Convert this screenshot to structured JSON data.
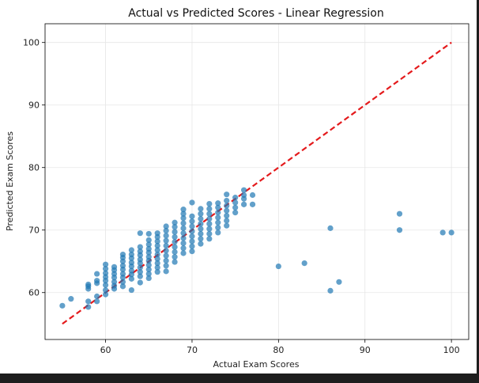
{
  "chart_data": {
    "type": "scatter",
    "title": "Actual vs Predicted Scores - Linear Regression",
    "xlabel": "Actual Exam Scores",
    "ylabel": "Predicted Exam Scores",
    "xlim": [
      53,
      102
    ],
    "ylim": [
      52.5,
      103
    ],
    "xticks": [
      60,
      70,
      80,
      90,
      100
    ],
    "yticks": [
      60,
      70,
      80,
      90,
      100
    ],
    "grid": true,
    "point_color": "#1f77b4",
    "line_color": "#e41a1c",
    "reference_line": {
      "style": "dashed",
      "x": [
        55,
        100
      ],
      "y": [
        55,
        100
      ]
    },
    "series": [
      {
        "points": [
          [
            55,
            57.9
          ],
          [
            56,
            59.0
          ],
          [
            58,
            57.7
          ],
          [
            58,
            58.6
          ],
          [
            58,
            60.6
          ],
          [
            58,
            61.0
          ],
          [
            58,
            61.3
          ],
          [
            59,
            58.6
          ],
          [
            59,
            59.4
          ],
          [
            59,
            61.5
          ],
          [
            59,
            61.9
          ],
          [
            59,
            63.0
          ],
          [
            60,
            59.7
          ],
          [
            60,
            60.4
          ],
          [
            60,
            61.2
          ],
          [
            60,
            61.9
          ],
          [
            60,
            62.5
          ],
          [
            60,
            63.1
          ],
          [
            60,
            63.8
          ],
          [
            60,
            64.5
          ],
          [
            61,
            60.6
          ],
          [
            61,
            61.1
          ],
          [
            61,
            61.7
          ],
          [
            61,
            62.4
          ],
          [
            61,
            63.0
          ],
          [
            61,
            63.6
          ],
          [
            61,
            64.1
          ],
          [
            62,
            61.0
          ],
          [
            62,
            61.7
          ],
          [
            62,
            62.4
          ],
          [
            62,
            63.0
          ],
          [
            62,
            63.7
          ],
          [
            62,
            64.3
          ],
          [
            62,
            65.0
          ],
          [
            62,
            65.6
          ],
          [
            62,
            66.1
          ],
          [
            63,
            60.4
          ],
          [
            63,
            62.2
          ],
          [
            63,
            62.9
          ],
          [
            63,
            63.5
          ],
          [
            63,
            64.2
          ],
          [
            63,
            64.8
          ],
          [
            63,
            65.5
          ],
          [
            63,
            66.1
          ],
          [
            63,
            66.8
          ],
          [
            64,
            61.6
          ],
          [
            64,
            62.6
          ],
          [
            64,
            63.3
          ],
          [
            64,
            64.0
          ],
          [
            64,
            64.7
          ],
          [
            64,
            65.3
          ],
          [
            64,
            66.0
          ],
          [
            64,
            66.6
          ],
          [
            64,
            67.3
          ],
          [
            64,
            69.5
          ],
          [
            65,
            62.3
          ],
          [
            65,
            63.0
          ],
          [
            65,
            63.7
          ],
          [
            65,
            64.4
          ],
          [
            65,
            65.1
          ],
          [
            65,
            65.7
          ],
          [
            65,
            66.4
          ],
          [
            65,
            67.0
          ],
          [
            65,
            67.7
          ],
          [
            65,
            68.4
          ],
          [
            65,
            69.4
          ],
          [
            66,
            63.3
          ],
          [
            66,
            64.0
          ],
          [
            66,
            64.7
          ],
          [
            66,
            65.4
          ],
          [
            66,
            66.1
          ],
          [
            66,
            66.8
          ],
          [
            66,
            67.5
          ],
          [
            66,
            68.2
          ],
          [
            66,
            68.9
          ],
          [
            66,
            69.5
          ],
          [
            67,
            63.4
          ],
          [
            67,
            64.3
          ],
          [
            67,
            65.1
          ],
          [
            67,
            65.9
          ],
          [
            67,
            66.7
          ],
          [
            67,
            67.5
          ],
          [
            67,
            68.3
          ],
          [
            67,
            69.1
          ],
          [
            67,
            69.9
          ],
          [
            67,
            70.6
          ],
          [
            68,
            64.9
          ],
          [
            68,
            65.7
          ],
          [
            68,
            66.5
          ],
          [
            68,
            67.3
          ],
          [
            68,
            68.1
          ],
          [
            68,
            68.9
          ],
          [
            68,
            69.7
          ],
          [
            68,
            70.5
          ],
          [
            68,
            71.2
          ],
          [
            69,
            66.3
          ],
          [
            69,
            67.1
          ],
          [
            69,
            67.9
          ],
          [
            69,
            68.7
          ],
          [
            69,
            69.5
          ],
          [
            69,
            70.3
          ],
          [
            69,
            71.1
          ],
          [
            69,
            71.9
          ],
          [
            69,
            72.6
          ],
          [
            69,
            73.3
          ],
          [
            70,
            66.6
          ],
          [
            70,
            67.4
          ],
          [
            70,
            68.2
          ],
          [
            70,
            69.0
          ],
          [
            70,
            69.8
          ],
          [
            70,
            70.6
          ],
          [
            70,
            71.4
          ],
          [
            70,
            72.2
          ],
          [
            70,
            74.4
          ],
          [
            71,
            67.8
          ],
          [
            71,
            68.6
          ],
          [
            71,
            69.4
          ],
          [
            71,
            70.2
          ],
          [
            71,
            71.0
          ],
          [
            71,
            71.8
          ],
          [
            71,
            72.6
          ],
          [
            71,
            73.4
          ],
          [
            72,
            68.6
          ],
          [
            72,
            69.4
          ],
          [
            72,
            70.2
          ],
          [
            72,
            71.0
          ],
          [
            72,
            71.8
          ],
          [
            72,
            72.6
          ],
          [
            72,
            73.4
          ],
          [
            72,
            74.2
          ],
          [
            73,
            69.6
          ],
          [
            73,
            70.4
          ],
          [
            73,
            71.2
          ],
          [
            73,
            72.0
          ],
          [
            73,
            72.8
          ],
          [
            73,
            73.6
          ],
          [
            73,
            74.3
          ],
          [
            74,
            70.7
          ],
          [
            74,
            71.5
          ],
          [
            74,
            72.3
          ],
          [
            74,
            73.1
          ],
          [
            74,
            73.9
          ],
          [
            74,
            74.7
          ],
          [
            74,
            75.7
          ],
          [
            75,
            72.8
          ],
          [
            75,
            73.6
          ],
          [
            75,
            74.4
          ],
          [
            75,
            75.2
          ],
          [
            76,
            74.1
          ],
          [
            76,
            75.0
          ],
          [
            76,
            75.6
          ],
          [
            76,
            76.4
          ],
          [
            77,
            74.1
          ],
          [
            77,
            75.6
          ],
          [
            80,
            64.2
          ],
          [
            83,
            64.7
          ],
          [
            86,
            60.3
          ],
          [
            86,
            70.3
          ],
          [
            87,
            61.7
          ],
          [
            94,
            70.0
          ],
          [
            94,
            72.6
          ],
          [
            99,
            69.6
          ],
          [
            100,
            69.6
          ]
        ]
      }
    ]
  }
}
